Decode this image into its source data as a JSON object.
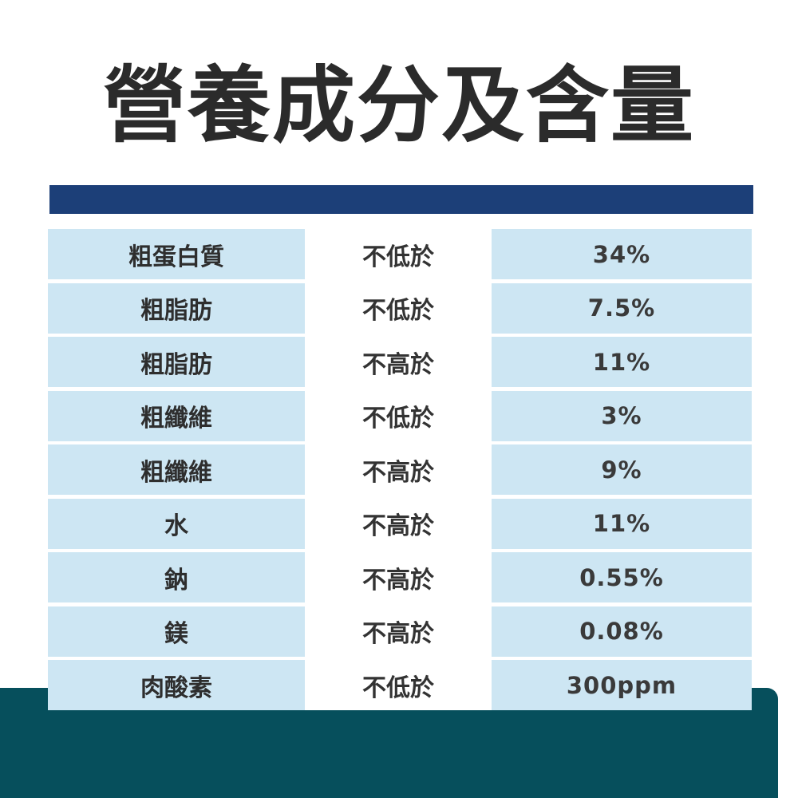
{
  "title": "營養成分及含量",
  "colors": {
    "title_text": "#2b2b2b",
    "header_bar": "#1c3f78",
    "cell_light_blue": "#cde6f3",
    "footer_band": "#064f5c"
  },
  "rows": [
    {
      "name": "粗蛋白質",
      "condition": "不低於",
      "value": "34%"
    },
    {
      "name": "粗脂肪",
      "condition": "不低於",
      "value": "7.5%"
    },
    {
      "name": "粗脂肪",
      "condition": "不高於",
      "value": "11%"
    },
    {
      "name": "粗纖維",
      "condition": "不低於",
      "value": "3%"
    },
    {
      "name": "粗纖維",
      "condition": "不高於",
      "value": "9%"
    },
    {
      "name": "水",
      "condition": "不高於",
      "value": "11%"
    },
    {
      "name": "鈉",
      "condition": "不高於",
      "value": "0.55%"
    },
    {
      "name": "鎂",
      "condition": "不高於",
      "value": "0.08%"
    },
    {
      "name": "肉酸素",
      "condition": "不低於",
      "value": "300ppm"
    }
  ]
}
